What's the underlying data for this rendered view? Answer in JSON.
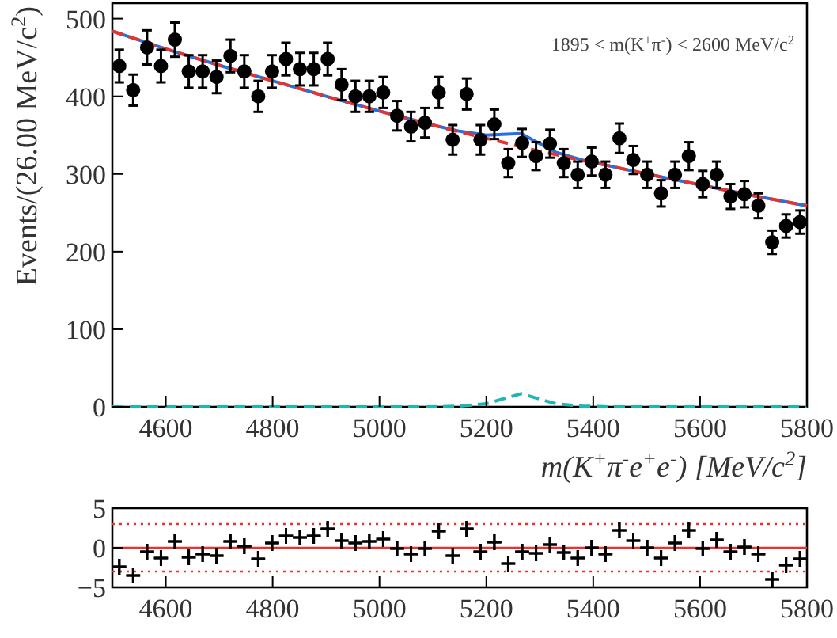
{
  "chart_data": [
    {
      "type": "scatter",
      "ylabel": "Events/(26.00 MeV/c$^{2}$)",
      "xlabel": "m(K$^{+}$π$^{-}$e$^{+}$e$^{-}$) [MeV/c$^{2}$]",
      "annotations": [
        "1895 < m(K$^{+}$π$^{-}$) < 2600 MeV/c$^{2}$"
      ],
      "xlim": [
        4500,
        5800
      ],
      "xticks": [
        4600,
        4800,
        5000,
        5200,
        5400,
        5600,
        5800
      ],
      "ylim": [
        0,
        520
      ],
      "yticks": [
        0,
        100,
        200,
        300,
        400,
        500
      ],
      "grid": false,
      "series": [
        {
          "type": "line",
          "color": "#1fb5b5",
          "line_style": "dashed",
          "x": [
            4500,
            5100,
            5150,
            5200,
            5230,
            5265,
            5300,
            5330,
            5380,
            5430,
            5800
          ],
          "values": [
            0,
            0,
            1,
            4,
            10,
            17,
            10,
            4,
            1,
            0,
            0
          ]
        },
        {
          "type": "line",
          "color": "#2a6fdb",
          "line_style": "solid",
          "x": [
            4500,
            4600,
            4700,
            4800,
            4900,
            5000,
            5100,
            5150,
            5200,
            5230,
            5265,
            5300,
            5330,
            5380,
            5400,
            5500,
            5600,
            5700,
            5800
          ],
          "values": [
            484,
            461,
            440,
            420,
            400,
            381,
            363,
            355,
            350,
            351,
            352,
            339,
            328,
            318,
            315,
            300,
            286,
            272,
            259
          ]
        },
        {
          "type": "line",
          "color": "#e8322e",
          "line_style": "dashed",
          "x": [
            4500,
            4600,
            4700,
            4800,
            4900,
            5000,
            5100,
            5150,
            5200,
            5230,
            5265,
            5300,
            5330,
            5380,
            5400,
            5500,
            5600,
            5700,
            5800
          ],
          "values": [
            484,
            461,
            440,
            420,
            400,
            381,
            363,
            354,
            346,
            341,
            335,
            329,
            325,
            317,
            315,
            300,
            286,
            272,
            259
          ]
        },
        {
          "type": "scatter",
          "color": "#000000",
          "marker": "circle",
          "x": [
            4513,
            4539,
            4565,
            4591,
            4617,
            4643,
            4669,
            4695,
            4721,
            4747,
            4773,
            4799,
            4825,
            4851,
            4877,
            4903,
            4929,
            4955,
            4981,
            5007,
            5033,
            5059,
            5085,
            5111,
            5137,
            5163,
            5189,
            5215,
            5241,
            5267,
            5293,
            5319,
            5345,
            5371,
            5397,
            5423,
            5449,
            5475,
            5501,
            5527,
            5553,
            5579,
            5605,
            5631,
            5657,
            5683,
            5709,
            5735,
            5761,
            5787
          ],
          "values": [
            439,
            408,
            463,
            439,
            473,
            432,
            432,
            425,
            452,
            432,
            400,
            432,
            448,
            435,
            435,
            448,
            415,
            400,
            400,
            405,
            375,
            361,
            366,
            405,
            344,
            403,
            344,
            364,
            314,
            340,
            323,
            339,
            314,
            299,
            316,
            299,
            346,
            318,
            299,
            275,
            299,
            323,
            287,
            299,
            271,
            274,
            259,
            212,
            233,
            238
          ],
          "errors": [
            21,
            20,
            22,
            21,
            22,
            21,
            21,
            21,
            21,
            21,
            20,
            21,
            21,
            21,
            21,
            21,
            20,
            20,
            20,
            20,
            19,
            19,
            19,
            20,
            19,
            20,
            19,
            19,
            18,
            18,
            18,
            18,
            18,
            17,
            18,
            17,
            19,
            18,
            17,
            17,
            17,
            18,
            17,
            17,
            16,
            17,
            16,
            15,
            15,
            15
          ]
        }
      ]
    },
    {
      "type": "scatter",
      "xlim": [
        4500,
        5800
      ],
      "xticks": [
        4600,
        4800,
        5000,
        5200,
        5400,
        5600,
        5800
      ],
      "ylim": [
        -5,
        5
      ],
      "yticks": [
        5,
        0,
        {
          "value": -5,
          "label": "−5"
        }
      ],
      "grid": false,
      "ref_lines": [
        {
          "axis": "y",
          "value": 0,
          "color": "#e8322e",
          "line_style": "solid"
        },
        {
          "axis": "y",
          "value": 3,
          "color": "#e8322e",
          "line_style": "dotted"
        },
        {
          "axis": "y",
          "value": -3,
          "color": "#e8322e",
          "line_style": "dotted"
        }
      ],
      "series": [
        {
          "type": "scatter",
          "color": "#000000",
          "marker": "cross",
          "x": [
            4513,
            4539,
            4565,
            4591,
            4617,
            4643,
            4669,
            4695,
            4721,
            4747,
            4773,
            4799,
            4825,
            4851,
            4877,
            4903,
            4929,
            4955,
            4981,
            5007,
            5033,
            5059,
            5085,
            5111,
            5137,
            5163,
            5189,
            5215,
            5241,
            5267,
            5293,
            5319,
            5345,
            5371,
            5397,
            5423,
            5449,
            5475,
            5501,
            5527,
            5553,
            5579,
            5605,
            5631,
            5657,
            5683,
            5709,
            5735,
            5761,
            5787
          ],
          "values": [
            -2.4,
            -3.5,
            -0.5,
            -1.3,
            0.8,
            -1.2,
            -0.8,
            -1.0,
            0.8,
            0.2,
            -1.4,
            0.6,
            1.5,
            1.3,
            1.5,
            2.4,
            0.9,
            0.6,
            0.8,
            1.1,
            -0.1,
            -0.8,
            -0.1,
            2.1,
            -1.0,
            2.4,
            -0.5,
            0.7,
            -2.0,
            -0.5,
            -0.7,
            0.4,
            -0.6,
            -1.3,
            0,
            -0.8,
            2.2,
            0.9,
            0,
            -1.3,
            0.6,
            2.2,
            -0.1,
            1.0,
            -0.5,
            0.1,
            -0.8,
            -4.0,
            -2.2,
            -1.4
          ],
          "errors": [
            1,
            1,
            1,
            1,
            1,
            1,
            1,
            1,
            1,
            1,
            1,
            1,
            1,
            1,
            1,
            1,
            1,
            1,
            1,
            1,
            1,
            1,
            1,
            1,
            1,
            1,
            1,
            1,
            1,
            1,
            1,
            1,
            1,
            1,
            1,
            1,
            1,
            1,
            1,
            1,
            1,
            1,
            1,
            1,
            1,
            1,
            1,
            1,
            1,
            1
          ],
          "xerrors": [
            13,
            13,
            13,
            13,
            13,
            13,
            13,
            13,
            13,
            13,
            13,
            13,
            13,
            13,
            13,
            13,
            13,
            13,
            13,
            13,
            13,
            13,
            13,
            13,
            13,
            13,
            13,
            13,
            13,
            13,
            13,
            13,
            13,
            13,
            13,
            13,
            13,
            13,
            13,
            13,
            13,
            13,
            13,
            13,
            13,
            13,
            13,
            13,
            13,
            13
          ]
        }
      ]
    }
  ]
}
